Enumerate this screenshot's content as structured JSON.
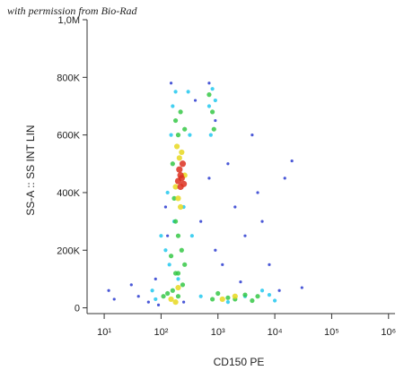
{
  "chart_data": {
    "type": "scatter",
    "annotation": "with permission from Bio-Rad",
    "x_label": "CD150 PE",
    "y_label": "SS-A :: SS INT LIN",
    "xscale": "log",
    "xlim": [
      5,
      1300000
    ],
    "ylim": [
      -20000,
      1000000
    ],
    "xticks": [
      {
        "value": 10,
        "label": "10¹"
      },
      {
        "value": 100,
        "label": "10²"
      },
      {
        "value": 1000,
        "label": "10³"
      },
      {
        "value": 10000,
        "label": "10⁴"
      },
      {
        "value": 100000,
        "label": "10⁵"
      },
      {
        "value": 1000000,
        "label": "10⁶"
      }
    ],
    "yticks": [
      0,
      {
        "value": 200000,
        "label": "200K"
      },
      {
        "value": 400000,
        "label": "400K"
      },
      {
        "value": 600000,
        "label": "600K"
      },
      {
        "value": 800000,
        "label": "800K"
      },
      {
        "value": 1000000,
        "label": "1,0M"
      }
    ],
    "series": [
      {
        "color": "#2a3bd0",
        "x": [
          12,
          15,
          30,
          40,
          60,
          80,
          120,
          130,
          500,
          700,
          900,
          1500,
          2000,
          3000,
          5000,
          8000,
          15000,
          20000,
          12000,
          400,
          700,
          900,
          1200,
          2500,
          6000,
          90,
          30000,
          150,
          250,
          4000
        ],
        "values": [
          60000,
          30000,
          80000,
          40000,
          20000,
          100000,
          350000,
          250000,
          300000,
          450000,
          200000,
          500000,
          350000,
          250000,
          400000,
          150000,
          450000,
          510000,
          60000,
          720000,
          780000,
          650000,
          150000,
          90000,
          300000,
          10000,
          70000,
          780000,
          20000,
          600000
        ]
      },
      {
        "color": "#22c8ee",
        "x": [
          100,
          120,
          140,
          150,
          160,
          180,
          300,
          320,
          350,
          700,
          750,
          800,
          900,
          70,
          80,
          500,
          3000,
          8000,
          10000,
          6000,
          1500,
          200,
          250,
          130,
          170
        ],
        "values": [
          250000,
          200000,
          150000,
          600000,
          700000,
          750000,
          750000,
          600000,
          250000,
          700000,
          600000,
          760000,
          720000,
          60000,
          30000,
          40000,
          40000,
          45000,
          25000,
          60000,
          20000,
          100000,
          350000,
          400000,
          300000
        ]
      },
      {
        "color": "#36c846",
        "x": [
          180,
          200,
          220,
          260,
          160,
          170,
          180,
          200,
          230,
          260,
          150,
          180,
          130,
          110,
          160,
          200,
          800,
          1000,
          1500,
          2000,
          3000,
          4000,
          5000,
          700,
          800,
          850,
          200,
          240
        ],
        "values": [
          650000,
          600000,
          680000,
          620000,
          500000,
          380000,
          300000,
          250000,
          200000,
          150000,
          180000,
          120000,
          50000,
          40000,
          60000,
          40000,
          30000,
          50000,
          35000,
          30000,
          45000,
          25000,
          40000,
          740000,
          680000,
          620000,
          120000,
          80000
        ]
      },
      {
        "color": "#e8d820",
        "x": [
          190,
          210,
          230,
          180,
          200,
          260,
          220,
          150,
          180,
          1200,
          2000,
          200
        ],
        "values": [
          560000,
          520000,
          540000,
          420000,
          380000,
          460000,
          350000,
          30000,
          20000,
          30000,
          40000,
          70000
        ]
      },
      {
        "color": "#dc3020",
        "x": [
          210,
          230,
          220,
          240,
          200,
          250,
          220
        ],
        "values": [
          480000,
          450000,
          420000,
          500000,
          440000,
          430000,
          460000
        ]
      }
    ]
  }
}
